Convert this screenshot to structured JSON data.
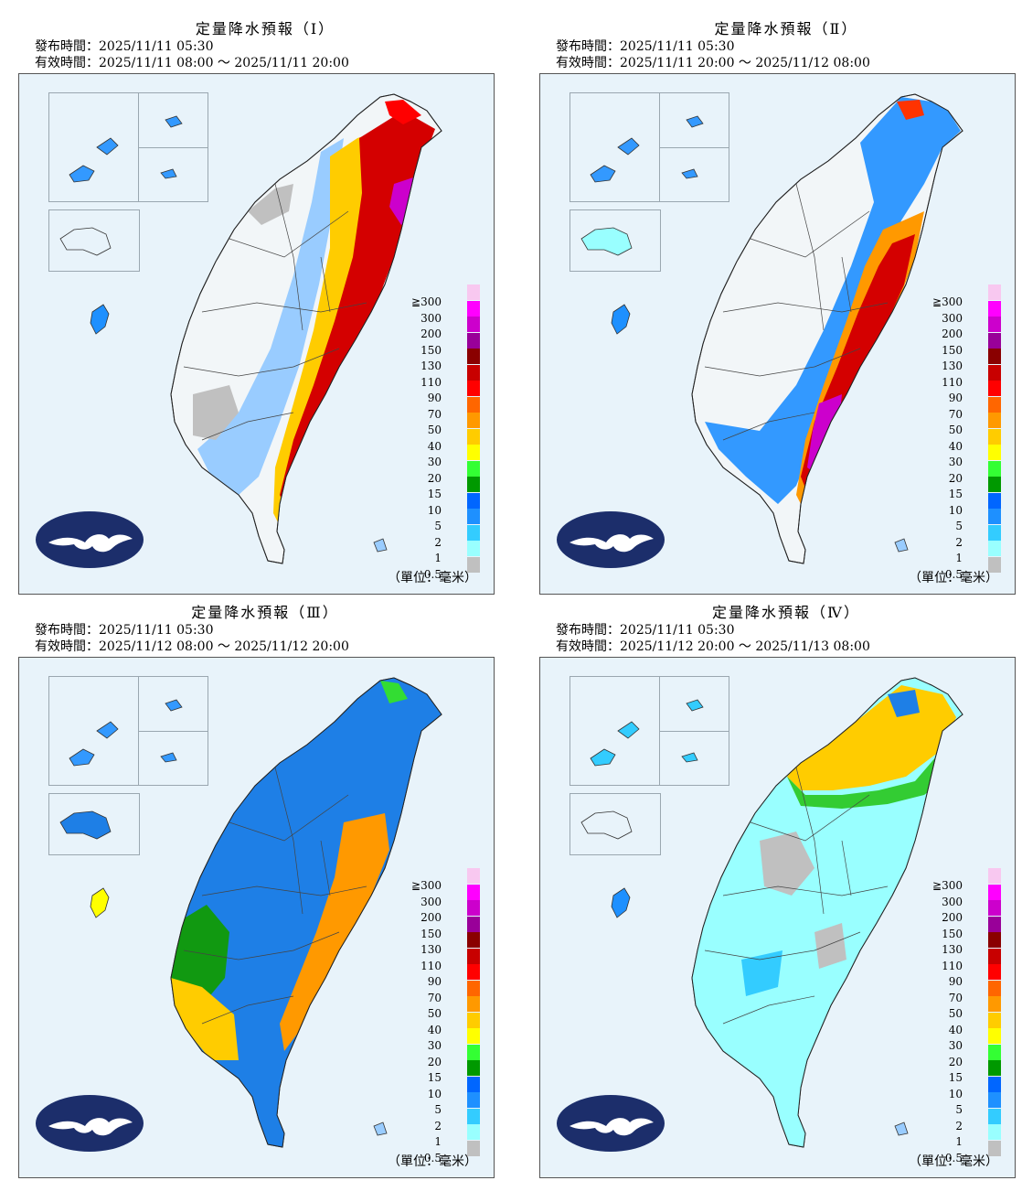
{
  "legend": {
    "levels": [
      "≧300",
      "300",
      "200",
      "150",
      "130",
      "110",
      "90",
      "70",
      "50",
      "40",
      "30",
      "20",
      "15",
      "10",
      "5",
      "2",
      "1",
      "0.5"
    ],
    "colors": [
      "#f8c8f0",
      "#ff00ff",
      "#cc00cc",
      "#990099",
      "#8a0000",
      "#c80000",
      "#ff0000",
      "#ff6600",
      "#ff9900",
      "#ffcc00",
      "#ffff00",
      "#33ff33",
      "#009900",
      "#0066ff",
      "#1e90ff",
      "#33ccff",
      "#99ffff",
      "#c0c0c0"
    ],
    "unit": "（單位：毫米）"
  },
  "panels": [
    {
      "title": "定量降水預報（Ⅰ）",
      "issued": "發布時間：2025/11/11 05:30",
      "valid": "有效時間：2025/11/11 08:00 ～ 2025/11/11 20:00"
    },
    {
      "title": "定量降水預報（Ⅱ）",
      "issued": "發布時間：2025/11/11 05:30",
      "valid": "有效時間：2025/11/11 20:00 ～ 2025/11/12 08:00"
    },
    {
      "title": "定量降水預報（Ⅲ）",
      "issued": "發布時間：2025/11/11 05:30",
      "valid": "有效時間：2025/11/12 08:00 ～ 2025/11/12 20:00"
    },
    {
      "title": "定量降水預報（Ⅳ）",
      "issued": "發布時間：2025/11/11 05:30",
      "valid": "有效時間：2025/11/12 20:00 ～ 2025/11/13 08:00"
    }
  ]
}
